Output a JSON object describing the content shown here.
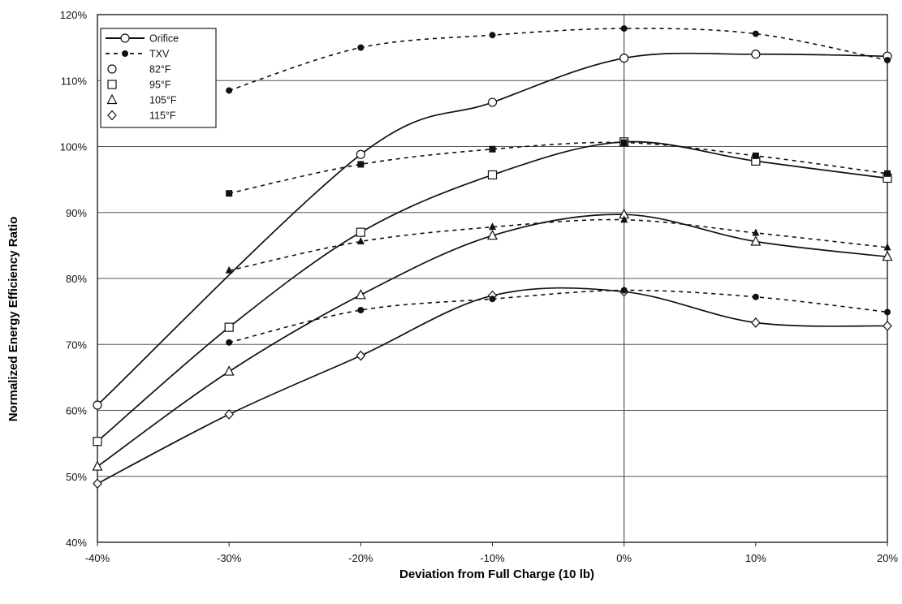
{
  "chart_data": {
    "type": "line",
    "xlabel": "Deviation from Full Charge (10 lb)",
    "ylabel": "Normalized Energy Efficiency Ratio",
    "xlim": [
      -40,
      20
    ],
    "ylim": [
      40,
      120
    ],
    "x_ticks": [
      -40,
      -30,
      -20,
      -10,
      0,
      10,
      20
    ],
    "x_tick_labels": [
      "-40%",
      "-30%",
      "-20%",
      "-10%",
      "0%",
      "10%",
      "20%"
    ],
    "y_ticks": [
      40,
      50,
      60,
      70,
      80,
      90,
      100,
      110,
      120
    ],
    "y_tick_labels": [
      "40%",
      "50%",
      "60%",
      "70%",
      "80%",
      "90%",
      "100%",
      "110%",
      "120%"
    ],
    "grid": true,
    "legend_position": "top-left",
    "legend": [
      {
        "label": "Orifice",
        "kind": "line-solid"
      },
      {
        "label": "TXV",
        "kind": "line-dashed"
      },
      {
        "label": "82°F",
        "kind": "marker-circle"
      },
      {
        "label": "95°F",
        "kind": "marker-square"
      },
      {
        "label": "105°F",
        "kind": "marker-triangle"
      },
      {
        "label": "115°F",
        "kind": "marker-diamond"
      }
    ],
    "series": [
      {
        "name": "Orifice 82°F",
        "device": "Orifice",
        "marker": "circle",
        "x": [
          -40,
          -20,
          -10,
          0,
          10,
          20
        ],
        "y": [
          60.8,
          98.8,
          106.7,
          113.4,
          114.0,
          113.7
        ]
      },
      {
        "name": "Orifice 95°F",
        "device": "Orifice",
        "marker": "square",
        "x": [
          -40,
          -30,
          -20,
          -10,
          0,
          10,
          20
        ],
        "y": [
          55.3,
          72.6,
          87.0,
          95.7,
          100.7,
          97.8,
          95.2
        ]
      },
      {
        "name": "Orifice 105°F",
        "device": "Orifice",
        "marker": "triangle",
        "x": [
          -40,
          -30,
          -20,
          -10,
          0,
          10,
          20
        ],
        "y": [
          51.5,
          65.9,
          77.5,
          86.5,
          89.7,
          85.6,
          83.3
        ]
      },
      {
        "name": "Orifice 115°F",
        "device": "Orifice",
        "marker": "diamond",
        "x": [
          -40,
          -30,
          -20,
          -10,
          0,
          10,
          20
        ],
        "y": [
          48.9,
          59.4,
          68.3,
          77.4,
          78.0,
          73.3,
          72.8
        ]
      },
      {
        "name": "TXV 82°F",
        "device": "TXV",
        "marker": "dot",
        "x": [
          -30,
          -20,
          -10,
          0,
          10,
          20
        ],
        "y": [
          108.5,
          115.0,
          116.9,
          117.9,
          117.1,
          113.1
        ]
      },
      {
        "name": "TXV 95°F",
        "device": "TXV",
        "marker": "filled-square",
        "x": [
          -30,
          -20,
          -10,
          0,
          10,
          20
        ],
        "y": [
          92.9,
          97.3,
          99.6,
          100.6,
          98.6,
          95.9
        ]
      },
      {
        "name": "TXV 105°F",
        "device": "TXV",
        "marker": "filled-triangle",
        "x": [
          -30,
          -20,
          -10,
          0,
          10,
          20
        ],
        "y": [
          81.2,
          85.6,
          87.8,
          88.9,
          86.9,
          84.7
        ]
      },
      {
        "name": "TXV 115°F",
        "device": "TXV",
        "marker": "dot",
        "x": [
          -30,
          -20,
          -10,
          0,
          10,
          20
        ],
        "y": [
          70.3,
          75.2,
          76.9,
          78.2,
          77.2,
          74.9
        ]
      }
    ]
  }
}
